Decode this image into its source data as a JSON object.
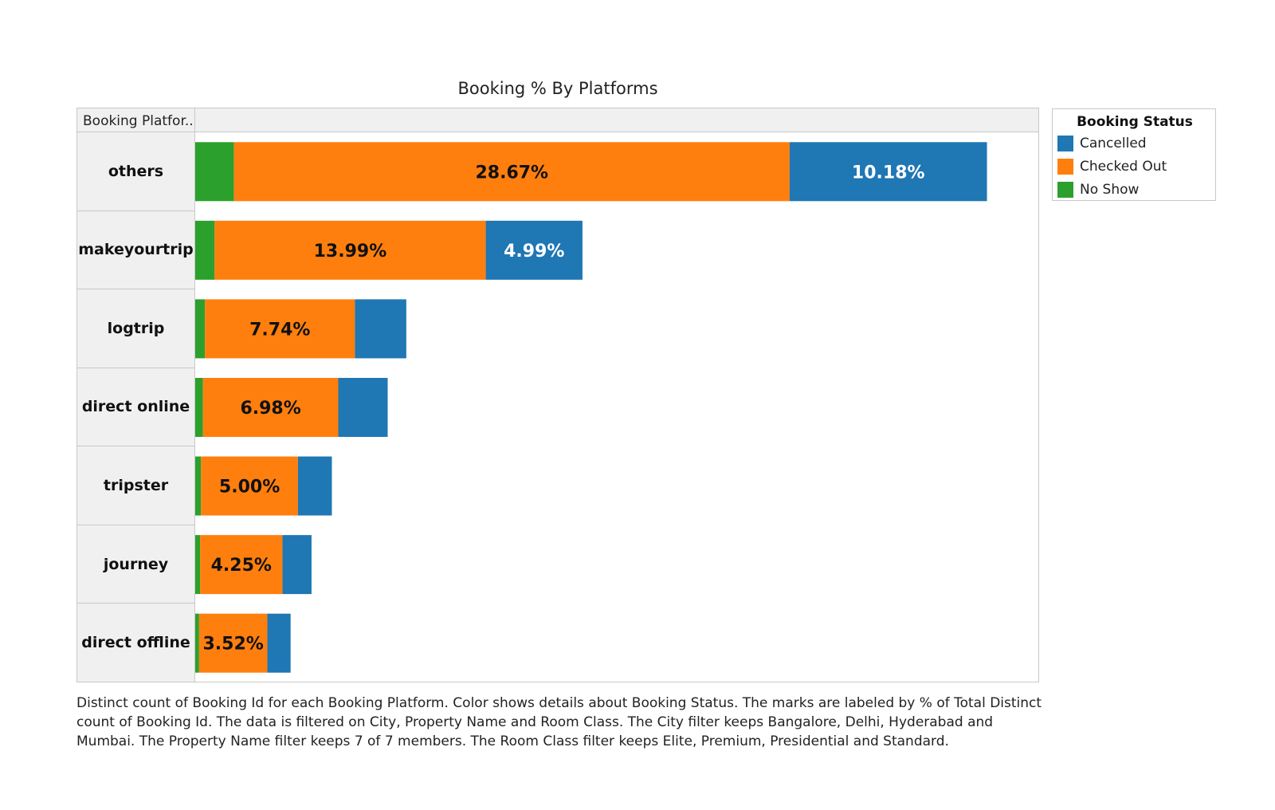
{
  "chart_data": {
    "type": "bar",
    "orientation": "horizontal",
    "stacked": true,
    "title": "Booking % By Platforms",
    "row_header_title": "Booking Platfor..",
    "categories": [
      "others",
      "makeyourtrip",
      "logtrip",
      "direct online",
      "tripster",
      "journey",
      "direct offline"
    ],
    "series": [
      {
        "name": "No Show",
        "color": "#2ca02c",
        "values": [
          2.0,
          1.0,
          0.5,
          0.4,
          0.3,
          0.25,
          0.2
        ]
      },
      {
        "name": "Checked Out",
        "color": "#ff7f0e",
        "values": [
          28.67,
          13.99,
          7.74,
          6.98,
          5.0,
          4.25,
          3.52
        ]
      },
      {
        "name": "Cancelled",
        "color": "#1f77b4",
        "values": [
          10.18,
          4.99,
          2.65,
          2.55,
          1.75,
          1.5,
          1.2
        ]
      }
    ],
    "labels": [
      {
        "category": "others",
        "series": "Checked Out",
        "text": "28.67%"
      },
      {
        "category": "others",
        "series": "Cancelled",
        "text": "10.18%"
      },
      {
        "category": "makeyourtrip",
        "series": "Checked Out",
        "text": "13.99%"
      },
      {
        "category": "makeyourtrip",
        "series": "Cancelled",
        "text": "4.99%"
      },
      {
        "category": "logtrip",
        "series": "Checked Out",
        "text": "7.74%"
      },
      {
        "category": "direct online",
        "series": "Checked Out",
        "text": "6.98%"
      },
      {
        "category": "tripster",
        "series": "Checked Out",
        "text": "5.00%"
      },
      {
        "category": "journey",
        "series": "Checked Out",
        "text": "4.25%"
      },
      {
        "category": "direct offline",
        "series": "Checked Out",
        "text": "3.52%"
      }
    ],
    "xlim": [
      0,
      43.5
    ],
    "grid": false,
    "legend": {
      "title": "Booking Status",
      "position": "right",
      "entries": [
        {
          "name": "Cancelled",
          "color": "#1f77b4"
        },
        {
          "name": "Checked Out",
          "color": "#ff7f0e"
        },
        {
          "name": "No Show",
          "color": "#2ca02c"
        }
      ]
    },
    "caption": "Distinct count of Booking Id for each Booking Platform.  Color shows details about Booking Status.  The marks are labeled by % of Total Distinct count of Booking Id. The data is filtered on City, Property Name and Room Class. The City filter keeps Bangalore, Delhi, Hyderabad and Mumbai. The Property Name filter keeps 7 of 7 members. The Room Class filter keeps Elite, Premium, Presidential and Standard."
  }
}
